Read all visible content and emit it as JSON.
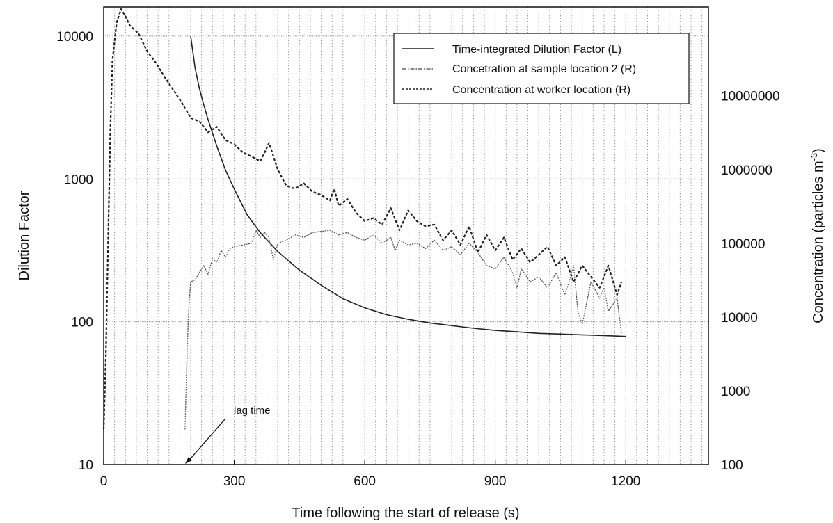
{
  "chart_data": {
    "type": "line",
    "xlabel": "Time following the start of release (s)",
    "ylabel_left": "Dilution Factor",
    "ylabel_right": "Concentration (particles m",
    "ylabel_right_sup": "-3",
    "ylabel_right_close": ")",
    "xlim": [
      0,
      1390
    ],
    "xticks": [
      0,
      300,
      600,
      900,
      1200
    ],
    "y_left_scale": "log",
    "y_left_lim": [
      10,
      16000
    ],
    "y_left_ticks": [
      10,
      100,
      1000,
      10000
    ],
    "y_right_scale": "log",
    "y_right_lim": [
      100,
      160000000
    ],
    "y_right_ticks": [
      100,
      1000,
      10000,
      100000,
      1000000,
      10000000
    ],
    "grid": "vertical dotted lines every 25 s; horizontal lines at left-axis decades",
    "legend_position": "top-right",
    "series": [
      {
        "name": "Time-integrated Dilution Factor (L)",
        "axis": "left",
        "style": "solid",
        "color": "#222222",
        "x": [
          200,
          210,
          220,
          230,
          240,
          250,
          260,
          270,
          280,
          300,
          330,
          360,
          400,
          450,
          500,
          550,
          600,
          650,
          700,
          750,
          800,
          850,
          900,
          950,
          1000,
          1050,
          1100,
          1150,
          1200
        ],
        "y": [
          10000,
          6000,
          4300,
          3300,
          2600,
          2100,
          1700,
          1400,
          1150,
          850,
          560,
          420,
          310,
          230,
          180,
          145,
          125,
          112,
          104,
          98,
          94,
          90,
          87,
          85,
          83,
          82,
          81,
          80,
          79
        ]
      },
      {
        "name": "Concetration at sample location 2 (R)",
        "axis": "right",
        "style": "dotted",
        "color": "#555555",
        "x": [
          187,
          190,
          195,
          200,
          210,
          220,
          230,
          240,
          250,
          260,
          270,
          280,
          290,
          300,
          320,
          340,
          350,
          360,
          370,
          380,
          390,
          400,
          420,
          440,
          460,
          480,
          500,
          520,
          540,
          560,
          580,
          600,
          620,
          640,
          660,
          670,
          680,
          700,
          720,
          740,
          760,
          780,
          800,
          820,
          840,
          860,
          880,
          900,
          920,
          940,
          950,
          960,
          980,
          1000,
          1020,
          1040,
          1060,
          1070,
          1080,
          1090,
          1100,
          1120,
          1140,
          1150,
          1160,
          1180,
          1190
        ],
        "y": [
          300,
          1500,
          12000,
          30000,
          32000,
          40000,
          50000,
          38000,
          62000,
          55000,
          80000,
          65000,
          85000,
          90000,
          95000,
          100000,
          150000,
          120000,
          140000,
          120000,
          60000,
          100000,
          110000,
          130000,
          120000,
          140000,
          145000,
          150000,
          130000,
          140000,
          120000,
          110000,
          130000,
          100000,
          120000,
          80000,
          110000,
          95000,
          100000,
          85000,
          110000,
          80000,
          90000,
          70000,
          100000,
          75000,
          50000,
          45000,
          65000,
          40000,
          25000,
          45000,
          30000,
          35000,
          25000,
          40000,
          20000,
          30000,
          50000,
          12000,
          8000,
          30000,
          18000,
          25000,
          12000,
          18000,
          6000
        ]
      },
      {
        "name": "Concentration at worker location (R)",
        "axis": "right",
        "style": "dashed",
        "color": "#222222",
        "x": [
          0,
          5,
          10,
          15,
          20,
          30,
          40,
          50,
          60,
          80,
          100,
          120,
          140,
          160,
          180,
          200,
          220,
          240,
          260,
          280,
          300,
          320,
          340,
          360,
          370,
          380,
          400,
          420,
          440,
          460,
          480,
          500,
          520,
          530,
          540,
          560,
          580,
          600,
          620,
          640,
          660,
          680,
          700,
          720,
          740,
          760,
          780,
          800,
          820,
          840,
          860,
          880,
          900,
          920,
          940,
          960,
          980,
          1000,
          1020,
          1040,
          1060,
          1080,
          1100,
          1120,
          1140,
          1160,
          1180,
          1190
        ],
        "y": [
          300,
          3000,
          100000,
          3000000,
          30000000,
          100000000,
          150000000,
          120000000,
          90000000,
          70000000,
          40000000,
          28000000,
          18000000,
          12000000,
          8000000,
          5000000,
          4500000,
          3200000,
          3800000,
          2500000,
          2200000,
          1700000,
          1500000,
          1300000,
          1700000,
          2300000,
          1000000,
          600000,
          550000,
          650000,
          500000,
          450000,
          380000,
          550000,
          320000,
          400000,
          260000,
          200000,
          220000,
          180000,
          300000,
          150000,
          280000,
          200000,
          170000,
          180000,
          110000,
          150000,
          95000,
          170000,
          75000,
          130000,
          80000,
          120000,
          60000,
          85000,
          55000,
          70000,
          90000,
          50000,
          65000,
          30000,
          50000,
          35000,
          25000,
          50000,
          20000,
          30000
        ]
      }
    ],
    "annotation": {
      "text": "lag time",
      "points_to_x": 187
    }
  }
}
